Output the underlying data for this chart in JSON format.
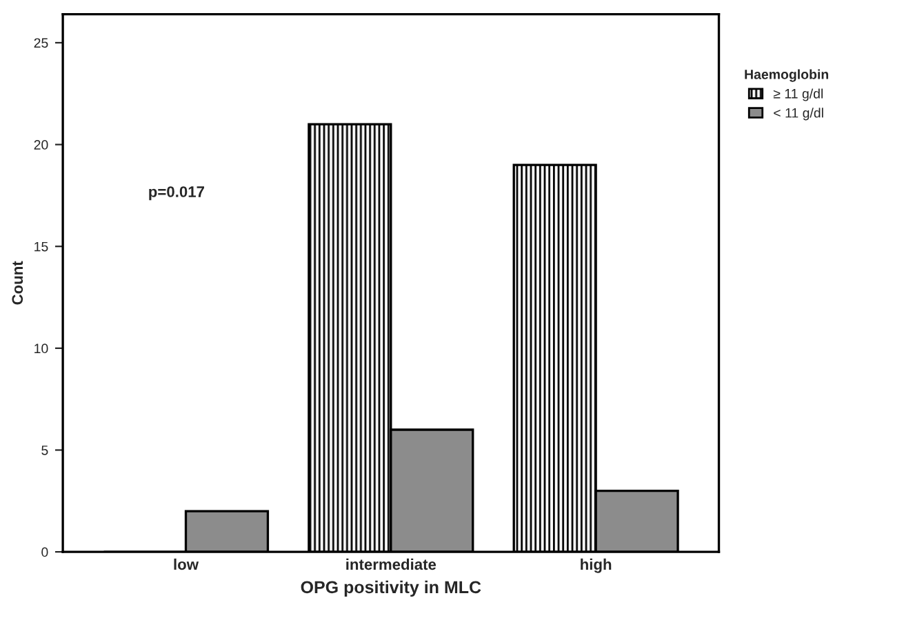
{
  "chart_data": {
    "type": "bar",
    "xlabel": "OPG positivity in MLC",
    "ylabel": "Count",
    "legend_title": "Haemoglobin",
    "categories": [
      "low",
      "intermediate",
      "high"
    ],
    "series": [
      {
        "name": "≥ 11 g/dl",
        "color": "#000000",
        "values": [
          0,
          21,
          19
        ]
      },
      {
        "name": "< 11 g/dl",
        "color": "#8c8c8c",
        "values": [
          2,
          6,
          3
        ]
      }
    ],
    "ylim": [
      0,
      26.4
    ],
    "yticks": [
      0,
      5,
      10,
      15,
      20,
      25
    ],
    "grid": false,
    "legend": "top right",
    "annotations": [
      "p=0.017"
    ]
  }
}
